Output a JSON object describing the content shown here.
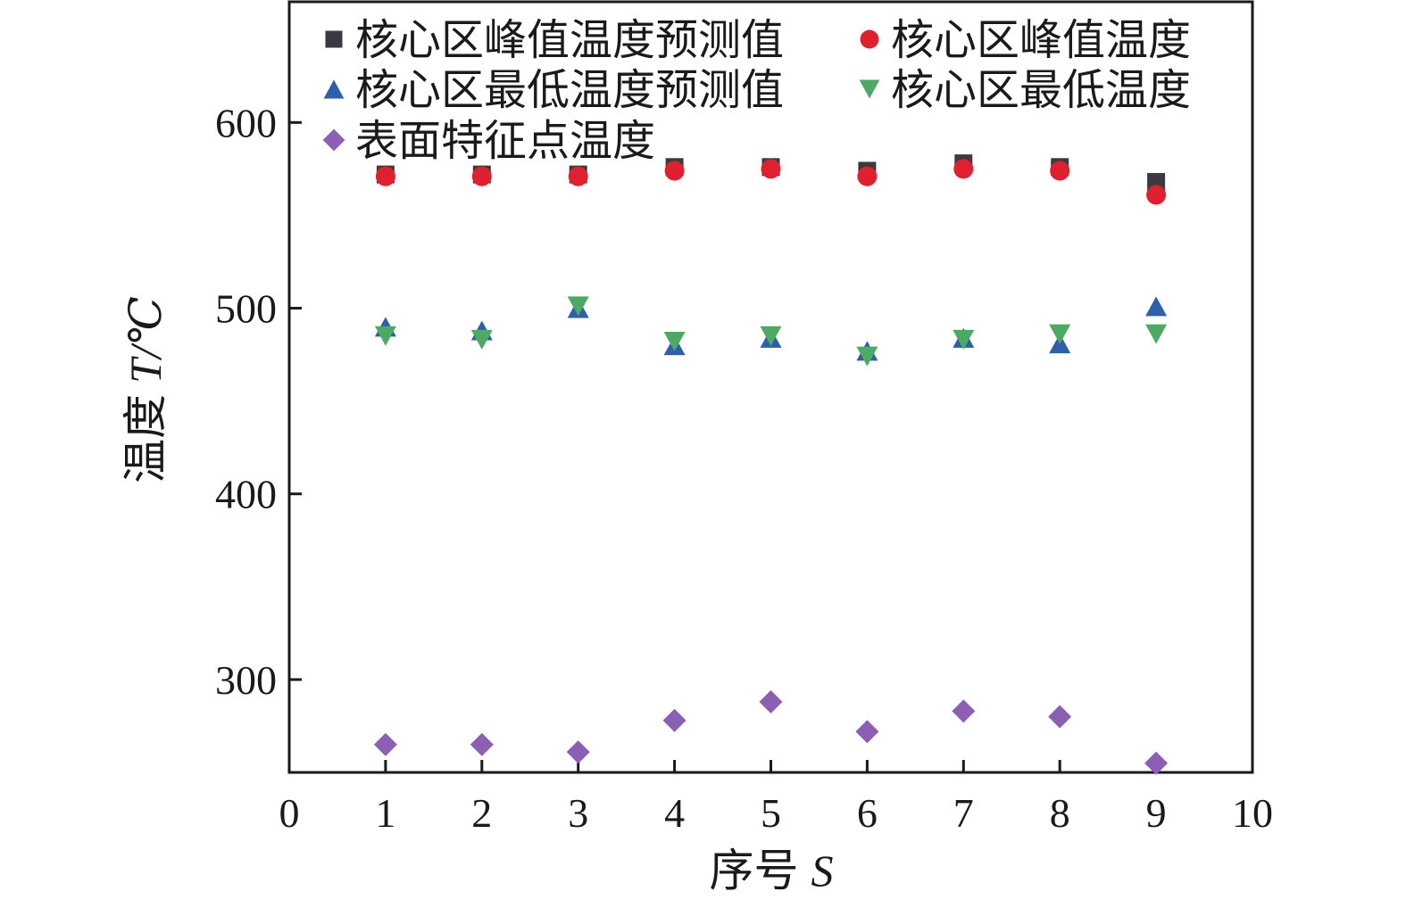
{
  "chart_data": {
    "type": "scatter",
    "xlabel": "序号",
    "xlabel_var": "S",
    "ylabel": "温度",
    "ylabel_var": "T",
    "ylabel_unit": "/℃",
    "xlim": [
      0,
      10
    ],
    "ylim": [
      250,
      665
    ],
    "xticks": [
      0,
      1,
      2,
      3,
      4,
      5,
      6,
      7,
      8,
      9,
      10
    ],
    "yticks": [
      300,
      400,
      500,
      600
    ],
    "grid": false,
    "legend_position": "top-left, inside plot",
    "x": [
      1,
      2,
      3,
      4,
      5,
      6,
      7,
      8,
      9
    ],
    "series": [
      {
        "name": "核心区峰值温度预测值",
        "marker": "square",
        "color": "#3a3a40",
        "values": [
          572,
          572,
          572,
          576,
          576,
          574,
          578,
          576,
          568
        ]
      },
      {
        "name": "核心区峰值温度",
        "marker": "circle",
        "color": "#e0202e",
        "values": [
          571,
          571,
          571,
          574,
          575,
          571,
          575,
          574,
          561
        ]
      },
      {
        "name": "核心区最低温度预测值",
        "marker": "triangle-up",
        "color": "#2e5fad",
        "values": [
          490,
          488,
          500,
          480,
          484,
          477,
          484,
          481,
          501
        ]
      },
      {
        "name": "核心区最低温度",
        "marker": "triangle-down",
        "color": "#4caa63",
        "values": [
          485,
          483,
          501,
          482,
          485,
          474,
          483,
          486,
          486
        ]
      },
      {
        "name": "表面特征点温度",
        "marker": "diamond",
        "color": "#8a5fb4",
        "values": [
          265,
          265,
          261,
          278,
          288,
          272,
          283,
          280,
          255
        ]
      }
    ]
  }
}
